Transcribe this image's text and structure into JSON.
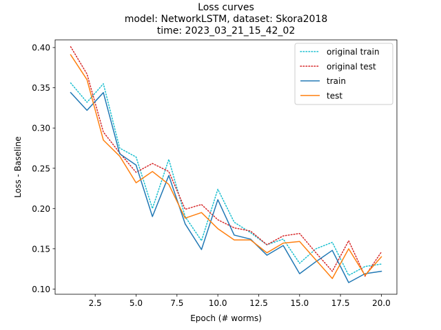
{
  "chart_data": {
    "type": "line",
    "title_lines": [
      "Loss curves",
      "model: NetworkLSTM, dataset: Skora2018",
      "time: 2023_03_21_15_42_02"
    ],
    "xlabel": "Epoch (# worms)",
    "ylabel": "Loss - Baseline",
    "xlim": [
      0.05,
      20.95
    ],
    "ylim": [
      0.0935,
      0.4095
    ],
    "x_ticks": [
      2.5,
      5.0,
      7.5,
      10.0,
      12.5,
      15.0,
      17.5,
      20.0
    ],
    "x_tick_labels": [
      "2.5",
      "5.0",
      "7.5",
      "10.0",
      "12.5",
      "15.0",
      "17.5",
      "20.0"
    ],
    "y_ticks": [
      0.1,
      0.15,
      0.2,
      0.25,
      0.3,
      0.35,
      0.4
    ],
    "y_tick_labels": [
      "0.10",
      "0.15",
      "0.20",
      "0.25",
      "0.30",
      "0.35",
      "0.40"
    ],
    "grid": false,
    "legend_position": "top-right",
    "x": [
      1,
      2,
      3,
      4,
      5,
      6,
      7,
      8,
      9,
      10,
      11,
      12,
      13,
      14,
      15,
      16,
      17,
      18,
      19,
      20
    ],
    "series": [
      {
        "name": "original train",
        "color": "#17becf",
        "style": "dotted",
        "values": [
          0.356,
          0.332,
          0.355,
          0.275,
          0.264,
          0.2,
          0.261,
          0.19,
          0.16,
          0.224,
          0.183,
          0.17,
          0.155,
          0.162,
          0.132,
          0.15,
          0.158,
          0.117,
          0.128,
          0.131
        ]
      },
      {
        "name": "original test",
        "color": "#d62728",
        "style": "dotted",
        "values": [
          0.401,
          0.367,
          0.295,
          0.269,
          0.245,
          0.256,
          0.246,
          0.199,
          0.205,
          0.186,
          0.176,
          0.172,
          0.155,
          0.166,
          0.169,
          0.145,
          0.122,
          0.16,
          0.116,
          0.146
        ]
      },
      {
        "name": "train",
        "color": "#1f77b4",
        "style": "solid",
        "values": [
          0.344,
          0.322,
          0.344,
          0.268,
          0.254,
          0.19,
          0.241,
          0.181,
          0.149,
          0.211,
          0.167,
          0.162,
          0.142,
          0.154,
          0.119,
          0.134,
          0.148,
          0.108,
          0.119,
          0.122
        ]
      },
      {
        "name": "test",
        "color": "#ff7f0e",
        "style": "solid",
        "values": [
          0.391,
          0.36,
          0.285,
          0.265,
          0.232,
          0.246,
          0.23,
          0.188,
          0.195,
          0.175,
          0.161,
          0.161,
          0.145,
          0.157,
          0.159,
          0.136,
          0.113,
          0.15,
          0.117,
          0.14
        ]
      }
    ]
  }
}
